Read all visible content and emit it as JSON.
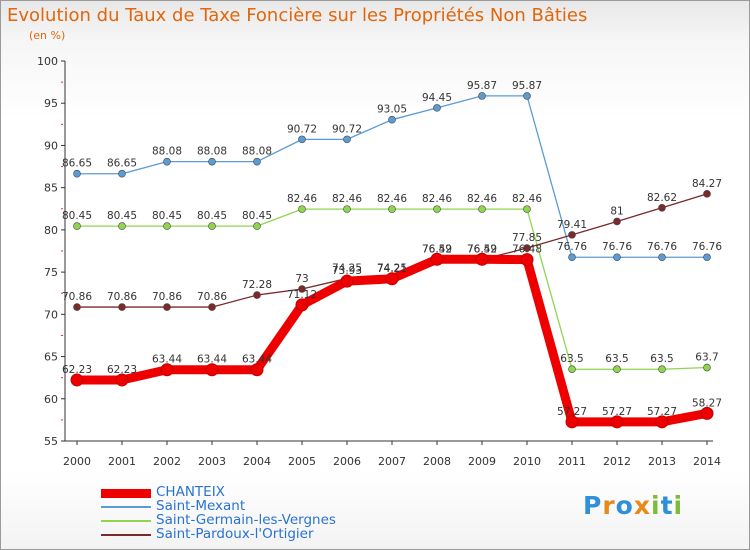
{
  "chart_data": {
    "type": "line",
    "title": "Evolution du Taux de Taxe Foncière sur les Propriétés Non Bâties",
    "unit_label": "(en %)",
    "xlabel": "",
    "ylabel": "(en %)",
    "ylim": [
      55,
      100
    ],
    "y_ticks": [
      "55",
      "60",
      "65",
      "70",
      "75",
      "80",
      "85",
      "90",
      "95",
      "100"
    ],
    "categories": [
      "2000",
      "2001",
      "2002",
      "2003",
      "2004",
      "2005",
      "2006",
      "2007",
      "2008",
      "2009",
      "2010",
      "2011",
      "2012",
      "2013",
      "2014"
    ],
    "grid": false,
    "legend_position": "bottom-left",
    "series": [
      {
        "name": "Saint-Mexant",
        "color": "#5c9bd3",
        "values": [
          86.65,
          86.65,
          88.08,
          88.08,
          88.08,
          90.72,
          90.72,
          93.05,
          94.45,
          95.87,
          95.87,
          76.76,
          76.76,
          76.76,
          76.76
        ],
        "labels": [
          "86.65",
          "86.65",
          "88.08",
          "88.08",
          "88.08",
          "90.72",
          "90.72",
          "93.05",
          "94.45",
          "95.87",
          "95.87",
          "76.76",
          "76.76",
          "76.76",
          "76.76"
        ]
      },
      {
        "name": "Saint-Germain-les-Vergnes",
        "color": "#8fd64e",
        "values": [
          80.45,
          80.45,
          80.45,
          80.45,
          80.45,
          82.46,
          82.46,
          82.46,
          82.46,
          82.46,
          82.46,
          63.5,
          63.5,
          63.5,
          63.7
        ],
        "labels": [
          "80.45",
          "80.45",
          "80.45",
          "80.45",
          "80.45",
          "82.46",
          "82.46",
          "82.46",
          "82.46",
          "82.46",
          "82.46",
          "63.5",
          "63.5",
          "63.5",
          "63.7"
        ]
      },
      {
        "name": "Saint-Pardoux-l'Ortigier",
        "color": "#7a2a2a",
        "values": [
          70.86,
          70.86,
          70.86,
          70.86,
          72.28,
          73,
          74.25,
          74.25,
          76.49,
          76.49,
          77.85,
          79.41,
          81,
          82.62,
          84.27
        ],
        "labels": [
          "70.86",
          "70.86",
          "70.86",
          "70.86",
          "72.28",
          "73",
          "74.25",
          "74.25",
          "76.49",
          "76.49",
          "77.85",
          "79.41",
          "81",
          "82.62",
          "84.27"
        ]
      },
      {
        "name": "CHANTEIX",
        "color": "#ee0000",
        "values": [
          62.23,
          62.23,
          63.44,
          63.44,
          63.44,
          71.12,
          73.93,
          74.21,
          76.52,
          76.52,
          76.48,
          57.27,
          57.27,
          57.27,
          58.27
        ],
        "labels": [
          "62.23",
          "62.23",
          "63.44",
          "63.44",
          "63.44",
          "71.12",
          "73.93",
          "74.21",
          "76.52",
          "76.52",
          "76.48",
          "57.27",
          "57.27",
          "57.27",
          "58.27"
        ]
      }
    ]
  },
  "legend": {
    "items": [
      {
        "label": "CHANTEIX",
        "color": "#ee0000"
      },
      {
        "label": "Saint-Mexant",
        "color": "#5c9bd3"
      },
      {
        "label": "Saint-Germain-les-Vergnes",
        "color": "#8fd64e"
      },
      {
        "label": "Saint-Pardoux-l'Ortigier",
        "color": "#7a2a2a"
      }
    ]
  },
  "logo": {
    "text": "Proxiti",
    "letters": [
      "P",
      "r",
      "o",
      "x",
      "i",
      "t",
      "i"
    ],
    "colors": [
      "#2f8fd8",
      "#e88a1a",
      "#2f8fd8",
      "#e88a1a",
      "#7bbd3a",
      "#2f8fd8",
      "#7bbd3a"
    ]
  }
}
